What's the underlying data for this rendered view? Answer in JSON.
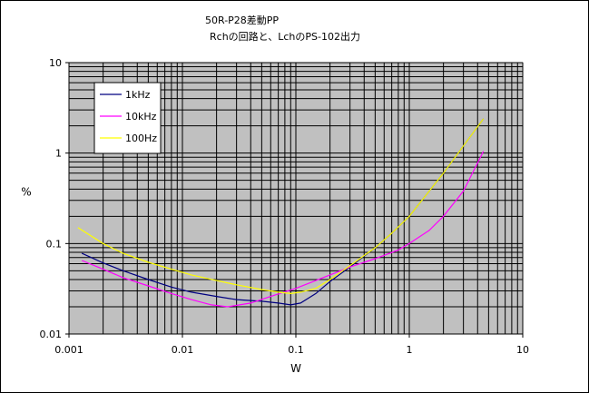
{
  "chart_data": {
    "type": "line",
    "title": [
      "50R-P28差動PP",
      "Rchの回路と、LchのPS-102出力"
    ],
    "xlabel": "W",
    "ylabel": "%",
    "xscale": "log",
    "yscale": "log",
    "xlim": [
      0.001,
      10
    ],
    "ylim": [
      0.01,
      10
    ],
    "xticks": [
      "0.001",
      "0.01",
      "0.1",
      "1",
      "10"
    ],
    "yticks": [
      "0.01",
      "0.1",
      "1",
      "10"
    ],
    "grid": true,
    "plot_background": "#c0c0c0",
    "legend_position": "top-left",
    "series": [
      {
        "name": "1kHz",
        "color": "#000080",
        "x": [
          0.0013,
          0.002,
          0.003,
          0.005,
          0.008,
          0.012,
          0.02,
          0.03,
          0.05,
          0.07,
          0.09,
          0.11,
          0.15,
          0.2,
          0.3,
          0.5,
          0.7,
          1,
          1.5,
          2,
          3,
          4.5
        ],
        "y": [
          0.078,
          0.061,
          0.05,
          0.04,
          0.033,
          0.029,
          0.026,
          0.024,
          0.023,
          0.022,
          0.021,
          0.022,
          0.028,
          0.038,
          0.055,
          0.09,
          0.13,
          0.2,
          0.38,
          0.6,
          1.2,
          2.4
        ]
      },
      {
        "name": "10kHz",
        "color": "#ff00ff",
        "x": [
          0.0013,
          0.002,
          0.003,
          0.005,
          0.008,
          0.012,
          0.018,
          0.025,
          0.04,
          0.06,
          0.1,
          0.15,
          0.2,
          0.3,
          0.5,
          0.8,
          1,
          1.5,
          2,
          3,
          4.5
        ],
        "y": [
          0.065,
          0.052,
          0.042,
          0.034,
          0.028,
          0.024,
          0.021,
          0.02,
          0.022,
          0.026,
          0.032,
          0.039,
          0.045,
          0.055,
          0.068,
          0.085,
          0.1,
          0.14,
          0.2,
          0.38,
          1.05
        ]
      },
      {
        "name": "100Hz",
        "color": "#ffff00",
        "x": [
          0.0012,
          0.002,
          0.003,
          0.005,
          0.008,
          0.012,
          0.02,
          0.03,
          0.05,
          0.07,
          0.09,
          0.11,
          0.15,
          0.2,
          0.3,
          0.5,
          0.7,
          1,
          1.5,
          2,
          3,
          4.5
        ],
        "y": [
          0.15,
          0.1,
          0.078,
          0.062,
          0.052,
          0.045,
          0.039,
          0.035,
          0.031,
          0.029,
          0.028,
          0.029,
          0.032,
          0.04,
          0.057,
          0.09,
          0.13,
          0.2,
          0.38,
          0.6,
          1.2,
          2.4
        ]
      }
    ]
  }
}
